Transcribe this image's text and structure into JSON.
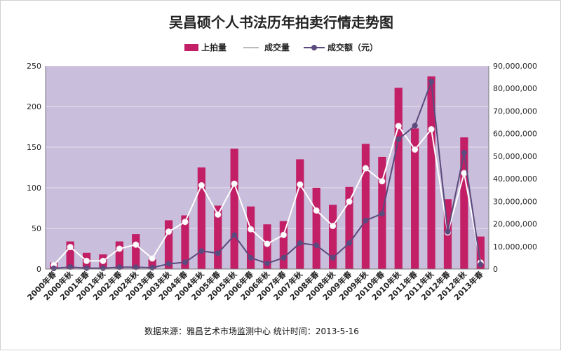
{
  "chart_data": {
    "type": "bar",
    "title": "吴昌硕个人书法历年拍卖行情走势图",
    "source_note": "数据来源：雅昌艺术市场监测中心  统计时间：2013-5-16",
    "legend": {
      "placement": "top",
      "labels": [
        "上拍量",
        "成交量",
        "成交额（元）"
      ]
    },
    "colors": {
      "plot_bg": "#c9bedb",
      "bar": "#c21f66",
      "line_volume": "#ffffff",
      "line_amount": "#5b4a7d"
    },
    "categories": [
      "2000年春",
      "2000年秋",
      "2001年春",
      "2001年秋",
      "2002年春",
      "2002年秋",
      "2003年春",
      "2003年秋",
      "2004年春",
      "2004年秋",
      "2005年春",
      "2005年秋",
      "2006年春",
      "2006年秋",
      "2007年春",
      "2007年秋",
      "2008年春",
      "2008年秋",
      "2009年春",
      "2009年秋",
      "2010年春",
      "2010年秋",
      "2011年春",
      "2011年秋",
      "2012年春",
      "2012年秋",
      "2013年春"
    ],
    "y_left": {
      "ylim": [
        0,
        250
      ],
      "ticks": [
        "0",
        "50",
        "100",
        "150",
        "200",
        "250"
      ]
    },
    "y_right": {
      "ylim": [
        0,
        90000000
      ],
      "ticks": [
        "0",
        "10,000,000",
        "20,000,000",
        "30,000,000",
        "40,000,000",
        "50,000,000",
        "60,000,000",
        "70,000,000",
        "80,000,000",
        "90,000,000"
      ]
    },
    "series": [
      {
        "name": "上拍量",
        "type": "bar",
        "axis": "left",
        "values": [
          8,
          34,
          20,
          18,
          34,
          43,
          12,
          60,
          66,
          125,
          78,
          148,
          77,
          55,
          59,
          135,
          100,
          79,
          101,
          154,
          138,
          223,
          173,
          237,
          86,
          162,
          40
        ]
      },
      {
        "name": "成交量",
        "type": "line",
        "axis": "left",
        "values": [
          5,
          27,
          10,
          10,
          25,
          30,
          13,
          46,
          58,
          103,
          67,
          105,
          49,
          31,
          42,
          104,
          72,
          53,
          83,
          124,
          108,
          176,
          147,
          172,
          45,
          118,
          8
        ]
      },
      {
        "name": "成交额（元）",
        "type": "line",
        "axis": "right",
        "values": [
          300000,
          900000,
          400000,
          400000,
          800000,
          800000,
          600000,
          2300000,
          3000000,
          8000000,
          7000000,
          15000000,
          5000000,
          2500000,
          5000000,
          11500000,
          10500000,
          5000000,
          11500000,
          21500000,
          24500000,
          57500000,
          63500000,
          83000000,
          16500000,
          51500000,
          2000000
        ]
      }
    ]
  }
}
